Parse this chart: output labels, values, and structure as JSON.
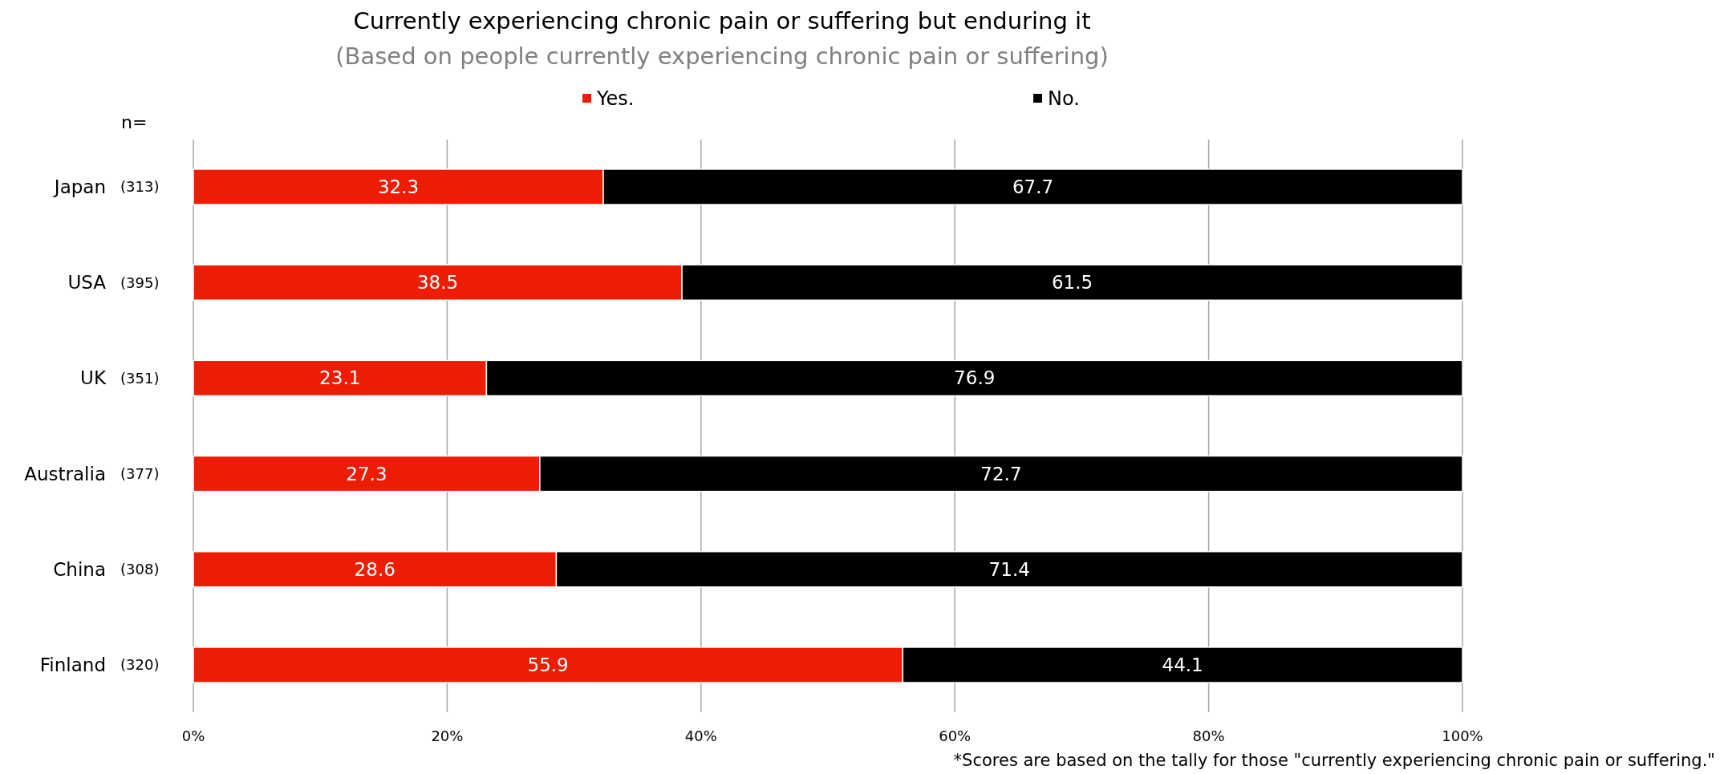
{
  "chart_data": {
    "type": "bar",
    "orientation": "horizontal",
    "stacked": true,
    "title": "Currently experiencing chronic pain or suffering but enduring it",
    "subtitle": "(Based on people currently experiencing chronic pain or suffering)",
    "categories": [
      "Japan",
      "USA",
      "UK",
      "Australia",
      "China",
      "Finland"
    ],
    "series": [
      {
        "name": "Yes.",
        "color": "#ec1c05",
        "values": [
          32.3,
          38.5,
          23.1,
          27.3,
          28.6,
          55.9
        ]
      },
      {
        "name": "No.",
        "color": "#000000",
        "values": [
          67.7,
          61.5,
          76.9,
          72.7,
          71.4,
          44.1
        ]
      }
    ],
    "xlim": [
      0,
      100
    ],
    "xticks": [
      {
        "value": 0,
        "label": "0%"
      },
      {
        "value": 20,
        "label": "20%"
      },
      {
        "value": 40,
        "label": "40%"
      },
      {
        "value": 60,
        "label": "60%"
      },
      {
        "value": 80,
        "label": "80%"
      },
      {
        "value": 100,
        "label": "100%"
      }
    ],
    "grid": "x",
    "legend": "top",
    "data_labels": true,
    "annotations": [
      "n=",
      "(313)",
      "(395)",
      "(351)",
      "(377)",
      "(308)",
      "(320)",
      "*Scores are based on the tally for those \"currently experiencing chronic pain or suffering.\""
    ]
  }
}
